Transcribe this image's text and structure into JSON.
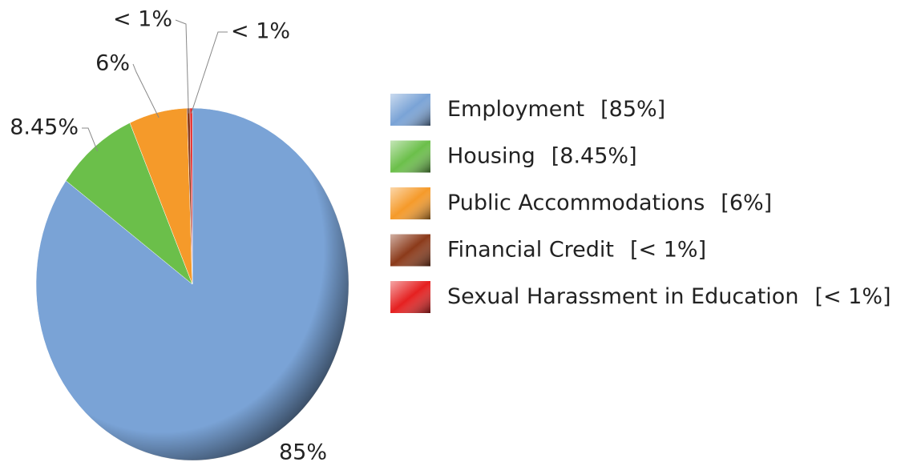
{
  "chart_data": {
    "type": "pie",
    "categories": [
      "Employment",
      "Housing",
      "Public Accommodations",
      "Financial Credit",
      "Sexual Harassment in Education"
    ],
    "values": [
      85,
      8.45,
      6,
      0.3,
      0.25
    ],
    "value_labels": [
      "85%",
      "8.45%",
      "6%",
      "< 1%",
      "< 1%"
    ],
    "legend_value_labels": [
      "[85%]",
      "[8.45%]",
      "[6%]",
      "[< 1%]",
      "[< 1%]"
    ],
    "colors": [
      "#7aa3d6",
      "#6bbf4a",
      "#f59a2a",
      "#8b3a1a",
      "#e52020"
    ],
    "legend": "right"
  }
}
